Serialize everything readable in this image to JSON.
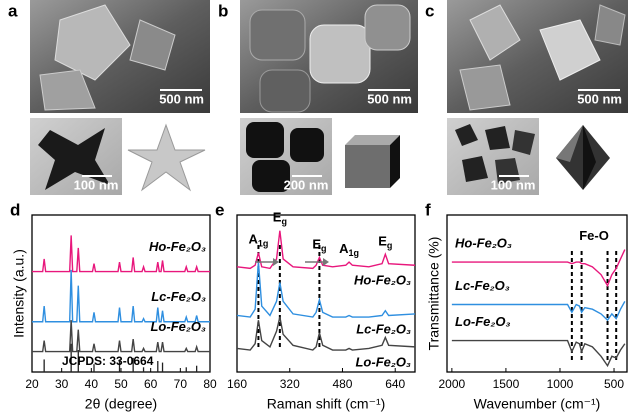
{
  "panels": [
    {
      "label": "a",
      "sem_scale": "500 nm",
      "tem_scale": "100 nm"
    },
    {
      "label": "b",
      "sem_scale": "500 nm",
      "tem_scale": "200 nm"
    },
    {
      "label": "c",
      "sem_scale": "500 nm",
      "tem_scale": "100 nm"
    }
  ],
  "chart_data": [
    {
      "type": "line",
      "panel_label": "d",
      "xlabel": "2θ (degree)",
      "ylabel": "Intensity (a.u.)",
      "xlim": [
        20,
        80
      ],
      "xticks": [
        20,
        30,
        40,
        50,
        60,
        70,
        80
      ],
      "ylim": [
        0,
        100
      ],
      "x": [
        20,
        23.6,
        24.1,
        24.6,
        32.7,
        33.2,
        33.7,
        35.1,
        35.6,
        36.1,
        40.4,
        40.9,
        41.4,
        49,
        49.5,
        50,
        53.6,
        54.1,
        54.6,
        57.1,
        57.6,
        58.1,
        61.9,
        62.4,
        62.9,
        63.5,
        64,
        64.5,
        71.5,
        72,
        72.5,
        75,
        75.5,
        76,
        80
      ],
      "series": [
        {
          "name": "Ho-Fe₂O₃",
          "color": "#e8177c",
          "values": [
            64,
            64,
            72,
            64,
            64,
            87,
            64,
            64,
            79,
            64,
            64,
            69,
            64,
            64,
            70,
            64,
            64,
            73,
            64,
            64,
            67,
            64,
            64,
            70,
            64,
            64,
            71,
            64,
            64,
            67,
            64,
            64,
            67,
            64,
            64
          ]
        },
        {
          "name": "Lc-Fe₂O₃",
          "color": "#2f8fe0",
          "values": [
            32,
            32,
            42,
            32,
            32,
            65,
            32,
            32,
            55,
            32,
            32,
            38,
            32,
            32,
            41,
            32,
            32,
            42,
            32,
            32,
            34,
            32,
            32,
            41,
            32,
            32,
            39,
            32,
            32,
            35,
            32,
            32,
            36,
            32,
            32
          ]
        },
        {
          "name": "Lo-Fe₂O₃",
          "color": "#444444",
          "values": [
            13,
            13,
            20,
            13,
            13,
            33,
            13,
            13,
            27,
            13,
            13,
            18,
            13,
            13,
            20,
            13,
            13,
            21,
            13,
            13,
            15,
            13,
            13,
            19,
            13,
            13,
            19,
            13,
            13,
            15,
            13,
            13,
            16,
            13,
            13
          ]
        }
      ],
      "reference": {
        "name": "JCPDS: 33-0664",
        "color": "#222222",
        "x": [
          24.1,
          33.2,
          35.6,
          40.9,
          49.5,
          54.1,
          57.6,
          62.4,
          64,
          72,
          75.5
        ],
        "values": [
          8,
          18,
          14,
          5,
          8,
          9,
          3,
          7,
          6,
          3,
          4
        ]
      }
    },
    {
      "type": "line",
      "panel_label": "e",
      "xlabel": "Raman shift (cm⁻¹)",
      "xlim": [
        160,
        700
      ],
      "xticks": [
        160,
        320,
        480,
        640
      ],
      "ylim": [
        0,
        100
      ],
      "x": [
        160,
        200,
        215,
        225,
        235,
        260,
        280,
        290,
        300,
        330,
        390,
        400,
        410,
        420,
        450,
        490,
        500,
        510,
        560,
        600,
        610,
        620,
        700
      ],
      "series": [
        {
          "name": "Ho-Fe₂O₃",
          "color": "#e8177c",
          "values": [
            67,
            66,
            68,
            76,
            67,
            66,
            72,
            90,
            72,
            67,
            66,
            68,
            73,
            68,
            67,
            68,
            70,
            68,
            67,
            69,
            75,
            69,
            68
          ]
        },
        {
          "name": "Lc-Fe₂O₃",
          "color": "#2f8fe0",
          "values": [
            36,
            35,
            40,
            70,
            42,
            36,
            45,
            57,
            45,
            37,
            35,
            38,
            46,
            38,
            35,
            35,
            36,
            35,
            35,
            36,
            39,
            36,
            37
          ]
        },
        {
          "name": "Lo-Fe₂O₃",
          "color": "#444444",
          "values": [
            15,
            14,
            18,
            33,
            20,
            16,
            26,
            35,
            24,
            17,
            14,
            16,
            25,
            17,
            14,
            14,
            15,
            14,
            15,
            17,
            22,
            17,
            16
          ]
        }
      ],
      "annotations": [
        {
          "text": "A",
          "sub": "1g",
          "x": 225
        },
        {
          "text": "E",
          "sub": "g",
          "x": 290
        },
        {
          "text": "E",
          "sub": "g",
          "x": 410
        },
        {
          "text": "A",
          "sub": "1g",
          "x": 500
        },
        {
          "text": "E",
          "sub": "g",
          "x": 610
        }
      ],
      "dashed_lines": [
        225,
        290,
        410
      ]
    },
    {
      "type": "line",
      "panel_label": "f",
      "xlabel": "Wavenumber (cm⁻¹)",
      "ylabel": "Transmittance (%)",
      "xlim": [
        2045,
        380
      ],
      "xticks": [
        2000,
        1500,
        1000,
        500
      ],
      "ylim": [
        0,
        100
      ],
      "x": [
        2000,
        1800,
        1600,
        1400,
        1200,
        1000,
        930,
        890,
        850,
        820,
        800,
        770,
        700,
        620,
        560,
        520,
        480,
        440,
        400
      ],
      "series": [
        {
          "name": "Ho-Fe₂O₃",
          "color": "#e8177c",
          "values": [
            70,
            70,
            70,
            70,
            70,
            70,
            70,
            69,
            70,
            70,
            69,
            69,
            67,
            62,
            55,
            62,
            66,
            72,
            78
          ]
        },
        {
          "name": "Lc-Fe₂O₃",
          "color": "#2f8fe0",
          "values": [
            43,
            43,
            43,
            43,
            43,
            43,
            43,
            38,
            43,
            42,
            38,
            41,
            40,
            37,
            33,
            37,
            34,
            40,
            45
          ]
        },
        {
          "name": "Lo-Fe₂O₃",
          "color": "#444444",
          "values": [
            20,
            20,
            20,
            20,
            20,
            20,
            20,
            13,
            19,
            18,
            13,
            18,
            16,
            10,
            4,
            10,
            9,
            14,
            18
          ]
        }
      ],
      "annotations": [
        {
          "text": "Fe-O"
        }
      ],
      "dashed_lines": [
        890,
        800,
        560,
        480
      ]
    }
  ]
}
